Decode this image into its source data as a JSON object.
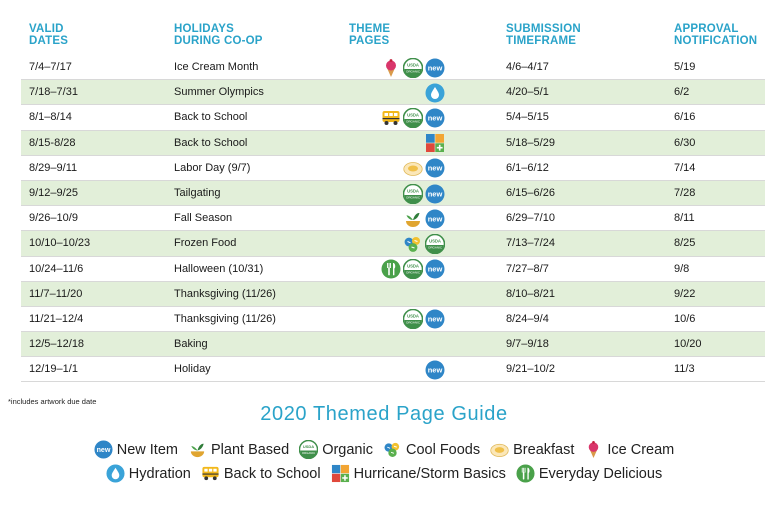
{
  "headers": {
    "valid": [
      "VALID",
      "DATES"
    ],
    "holidays": [
      "HOLIDAYS",
      "DURING CO-OP"
    ],
    "theme": [
      "THEME",
      "PAGES"
    ],
    "submission": [
      "SUBMISSION",
      "TIMEFRAME"
    ],
    "approval": [
      "APPROVAL",
      "NOTIFICATION"
    ]
  },
  "rows": [
    {
      "dates": "7/4–7/17",
      "holiday": "Ice Cream Month",
      "icons": [
        "ice-cream",
        "organic",
        "new-item"
      ],
      "submission": "4/6–4/17",
      "approval": "5/19"
    },
    {
      "dates": "7/18–7/31",
      "holiday": "Summer Olympics",
      "icons": [
        "hydration"
      ],
      "submission": "4/20–5/1",
      "approval": "6/2"
    },
    {
      "dates": "8/1–8/14",
      "holiday": "Back to School",
      "icons": [
        "back-to-school",
        "organic",
        "new-item"
      ],
      "submission": "5/4–5/15",
      "approval": "6/16"
    },
    {
      "dates": "8/15-8/28",
      "holiday": "Back to School",
      "icons": [
        "hurricane"
      ],
      "submission": "5/18–5/29",
      "approval": "6/30"
    },
    {
      "dates": "8/29–9/11",
      "holiday": "Labor Day (9/7)",
      "icons": [
        "breakfast",
        "new-item"
      ],
      "submission": "6/1–6/12",
      "approval": "7/14"
    },
    {
      "dates": "9/12–9/25",
      "holiday": "Tailgating",
      "icons": [
        "organic",
        "new-item"
      ],
      "submission": "6/15–6/26",
      "approval": "7/28"
    },
    {
      "dates": "9/26–10/9",
      "holiday": "Fall Season",
      "icons": [
        "plant-based",
        "new-item"
      ],
      "submission": "6/29–7/10",
      "approval": "8/11"
    },
    {
      "dates": "10/10–10/23",
      "holiday": "Frozen Food",
      "icons": [
        "cool-foods",
        "organic"
      ],
      "submission": "7/13–7/24",
      "approval": "8/25"
    },
    {
      "dates": "10/24–11/6",
      "holiday": "Halloween (10/31)",
      "icons": [
        "everyday-delicious",
        "organic",
        "new-item"
      ],
      "submission": "7/27–8/7",
      "approval": "9/8"
    },
    {
      "dates": "11/7–11/20",
      "holiday": "Thanksgiving (11/26)",
      "icons": [],
      "submission": "8/10–8/21",
      "approval": "9/22"
    },
    {
      "dates": "11/21–12/4",
      "holiday": "Thanksgiving (11/26)",
      "icons": [
        "organic",
        "new-item"
      ],
      "submission": "8/24–9/4",
      "approval": "10/6"
    },
    {
      "dates": "12/5–12/18",
      "holiday": "Baking",
      "icons": [],
      "submission": "9/7–9/18",
      "approval": "10/20"
    },
    {
      "dates": "12/19–1/1",
      "holiday": "Holiday",
      "icons": [
        "new-item"
      ],
      "submission": "9/21–10/2",
      "approval": "11/3"
    }
  ],
  "footnote": "*includes artwork due date",
  "guide_title": "2020 Themed Page Guide",
  "legend_row1": [
    {
      "icon": "new-item",
      "label": "New Item"
    },
    {
      "icon": "plant-based",
      "label": "Plant Based"
    },
    {
      "icon": "organic",
      "label": "Organic"
    },
    {
      "icon": "cool-foods",
      "label": "Cool Foods"
    },
    {
      "icon": "breakfast",
      "label": "Breakfast"
    },
    {
      "icon": "ice-cream",
      "label": "Ice Cream"
    }
  ],
  "legend_row2": [
    {
      "icon": "hydration",
      "label": "Hydration"
    },
    {
      "icon": "back-to-school",
      "label": "Back to School"
    },
    {
      "icon": "hurricane",
      "label": "Hurricane/Storm Basics"
    },
    {
      "icon": "everyday-delicious",
      "label": "Everyday Delicious"
    }
  ],
  "icon_text": {
    "new": "new",
    "usda": "USDA",
    "organic_small": "ORGANIC"
  },
  "colors": {
    "accent": "#2aa3c9",
    "row_alt": "#e2efd9",
    "new_item": "#2f86c7",
    "organic_green": "#3f8f4a",
    "ice_cream_pink": "#d9366b",
    "school_bus": "#f2b81b",
    "everyday_green": "#4aa14a"
  }
}
